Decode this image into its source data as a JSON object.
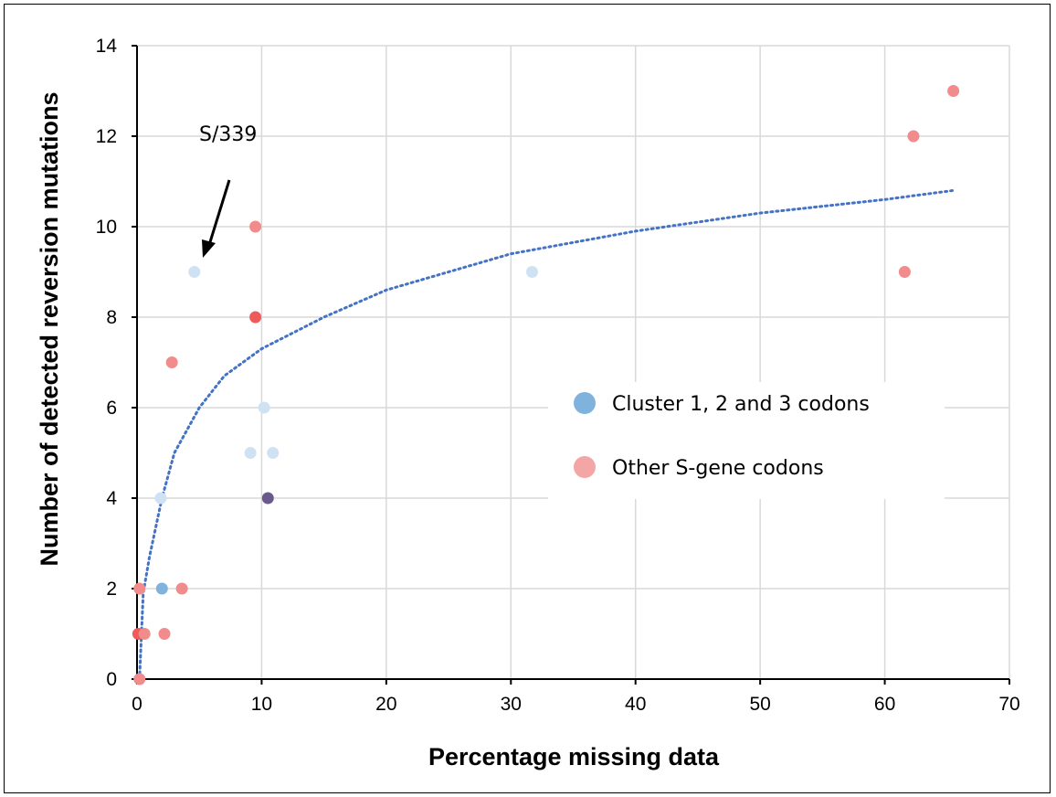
{
  "chart_data": {
    "type": "scatter",
    "xlabel": "Percentage missing data",
    "ylabel": "Number of detected reversion mutations",
    "xlim": [
      0,
      70
    ],
    "ylim": [
      0,
      14
    ],
    "xticks": [
      "0",
      "10",
      "20",
      "30",
      "40",
      "50",
      "60",
      "70"
    ],
    "yticks": [
      "0",
      "2",
      "4",
      "6",
      "8",
      "10",
      "12",
      "14"
    ],
    "grid": true,
    "legend_position": "right-center",
    "annotation": {
      "text": "S/339",
      "target": [
        4.6,
        9
      ]
    },
    "series": [
      {
        "name": "Cluster 1, 2 and 3 codons",
        "color": "#7fb3de",
        "points": [
          {
            "x": 4.6,
            "y": 9,
            "color": "#cfe2f3"
          },
          {
            "x": 31.7,
            "y": 9,
            "color": "#cfe2f3"
          },
          {
            "x": 10.2,
            "y": 6,
            "color": "#cfe2f3"
          },
          {
            "x": 9.1,
            "y": 5,
            "color": "#cfe2f3"
          },
          {
            "x": 10.9,
            "y": 5,
            "color": "#cfe2f3"
          },
          {
            "x": 1.9,
            "y": 4,
            "color": "#cfe2f3"
          },
          {
            "x": 10.5,
            "y": 4,
            "color": "#6a5a8c"
          },
          {
            "x": 2.0,
            "y": 2,
            "color": "#7fb3de"
          }
        ]
      },
      {
        "name": "Other S-gene codons",
        "color": "#f4a6a6",
        "points": [
          {
            "x": 65.5,
            "y": 13,
            "color": "#f28b8b"
          },
          {
            "x": 62.3,
            "y": 12,
            "color": "#f28b8b"
          },
          {
            "x": 9.5,
            "y": 10,
            "color": "#f28b8b"
          },
          {
            "x": 61.6,
            "y": 9,
            "color": "#f28b8b"
          },
          {
            "x": 9.5,
            "y": 8,
            "color": "#ef5b5b"
          },
          {
            "x": 2.8,
            "y": 7,
            "color": "#f28b8b"
          },
          {
            "x": 3.6,
            "y": 2,
            "color": "#f28b8b"
          },
          {
            "x": 0.2,
            "y": 2,
            "color": "#f28b8b"
          },
          {
            "x": 2.2,
            "y": 1,
            "color": "#f28b8b"
          },
          {
            "x": 0.1,
            "y": 1,
            "color": "#ef5b5b"
          },
          {
            "x": 0.6,
            "y": 1,
            "color": "#f28b8b"
          },
          {
            "x": 0.2,
            "y": 0,
            "color": "#f28b8b"
          }
        ]
      }
    ],
    "trendline": {
      "type": "logarithmic",
      "style": "dotted",
      "color": "#4472c4",
      "x_range": [
        0.2,
        65.5
      ],
      "points": [
        {
          "x": 0.2,
          "y": 0.0
        },
        {
          "x": 0.5,
          "y": 1.9
        },
        {
          "x": 1,
          "y": 2.7
        },
        {
          "x": 2,
          "y": 4.0
        },
        {
          "x": 3,
          "y": 5.0
        },
        {
          "x": 5,
          "y": 6.0
        },
        {
          "x": 7,
          "y": 6.7
        },
        {
          "x": 10,
          "y": 7.3
        },
        {
          "x": 15,
          "y": 8.0
        },
        {
          "x": 20,
          "y": 8.6
        },
        {
          "x": 30,
          "y": 9.4
        },
        {
          "x": 40,
          "y": 9.9
        },
        {
          "x": 50,
          "y": 10.3
        },
        {
          "x": 60,
          "y": 10.6
        },
        {
          "x": 65.5,
          "y": 10.8
        }
      ]
    }
  }
}
